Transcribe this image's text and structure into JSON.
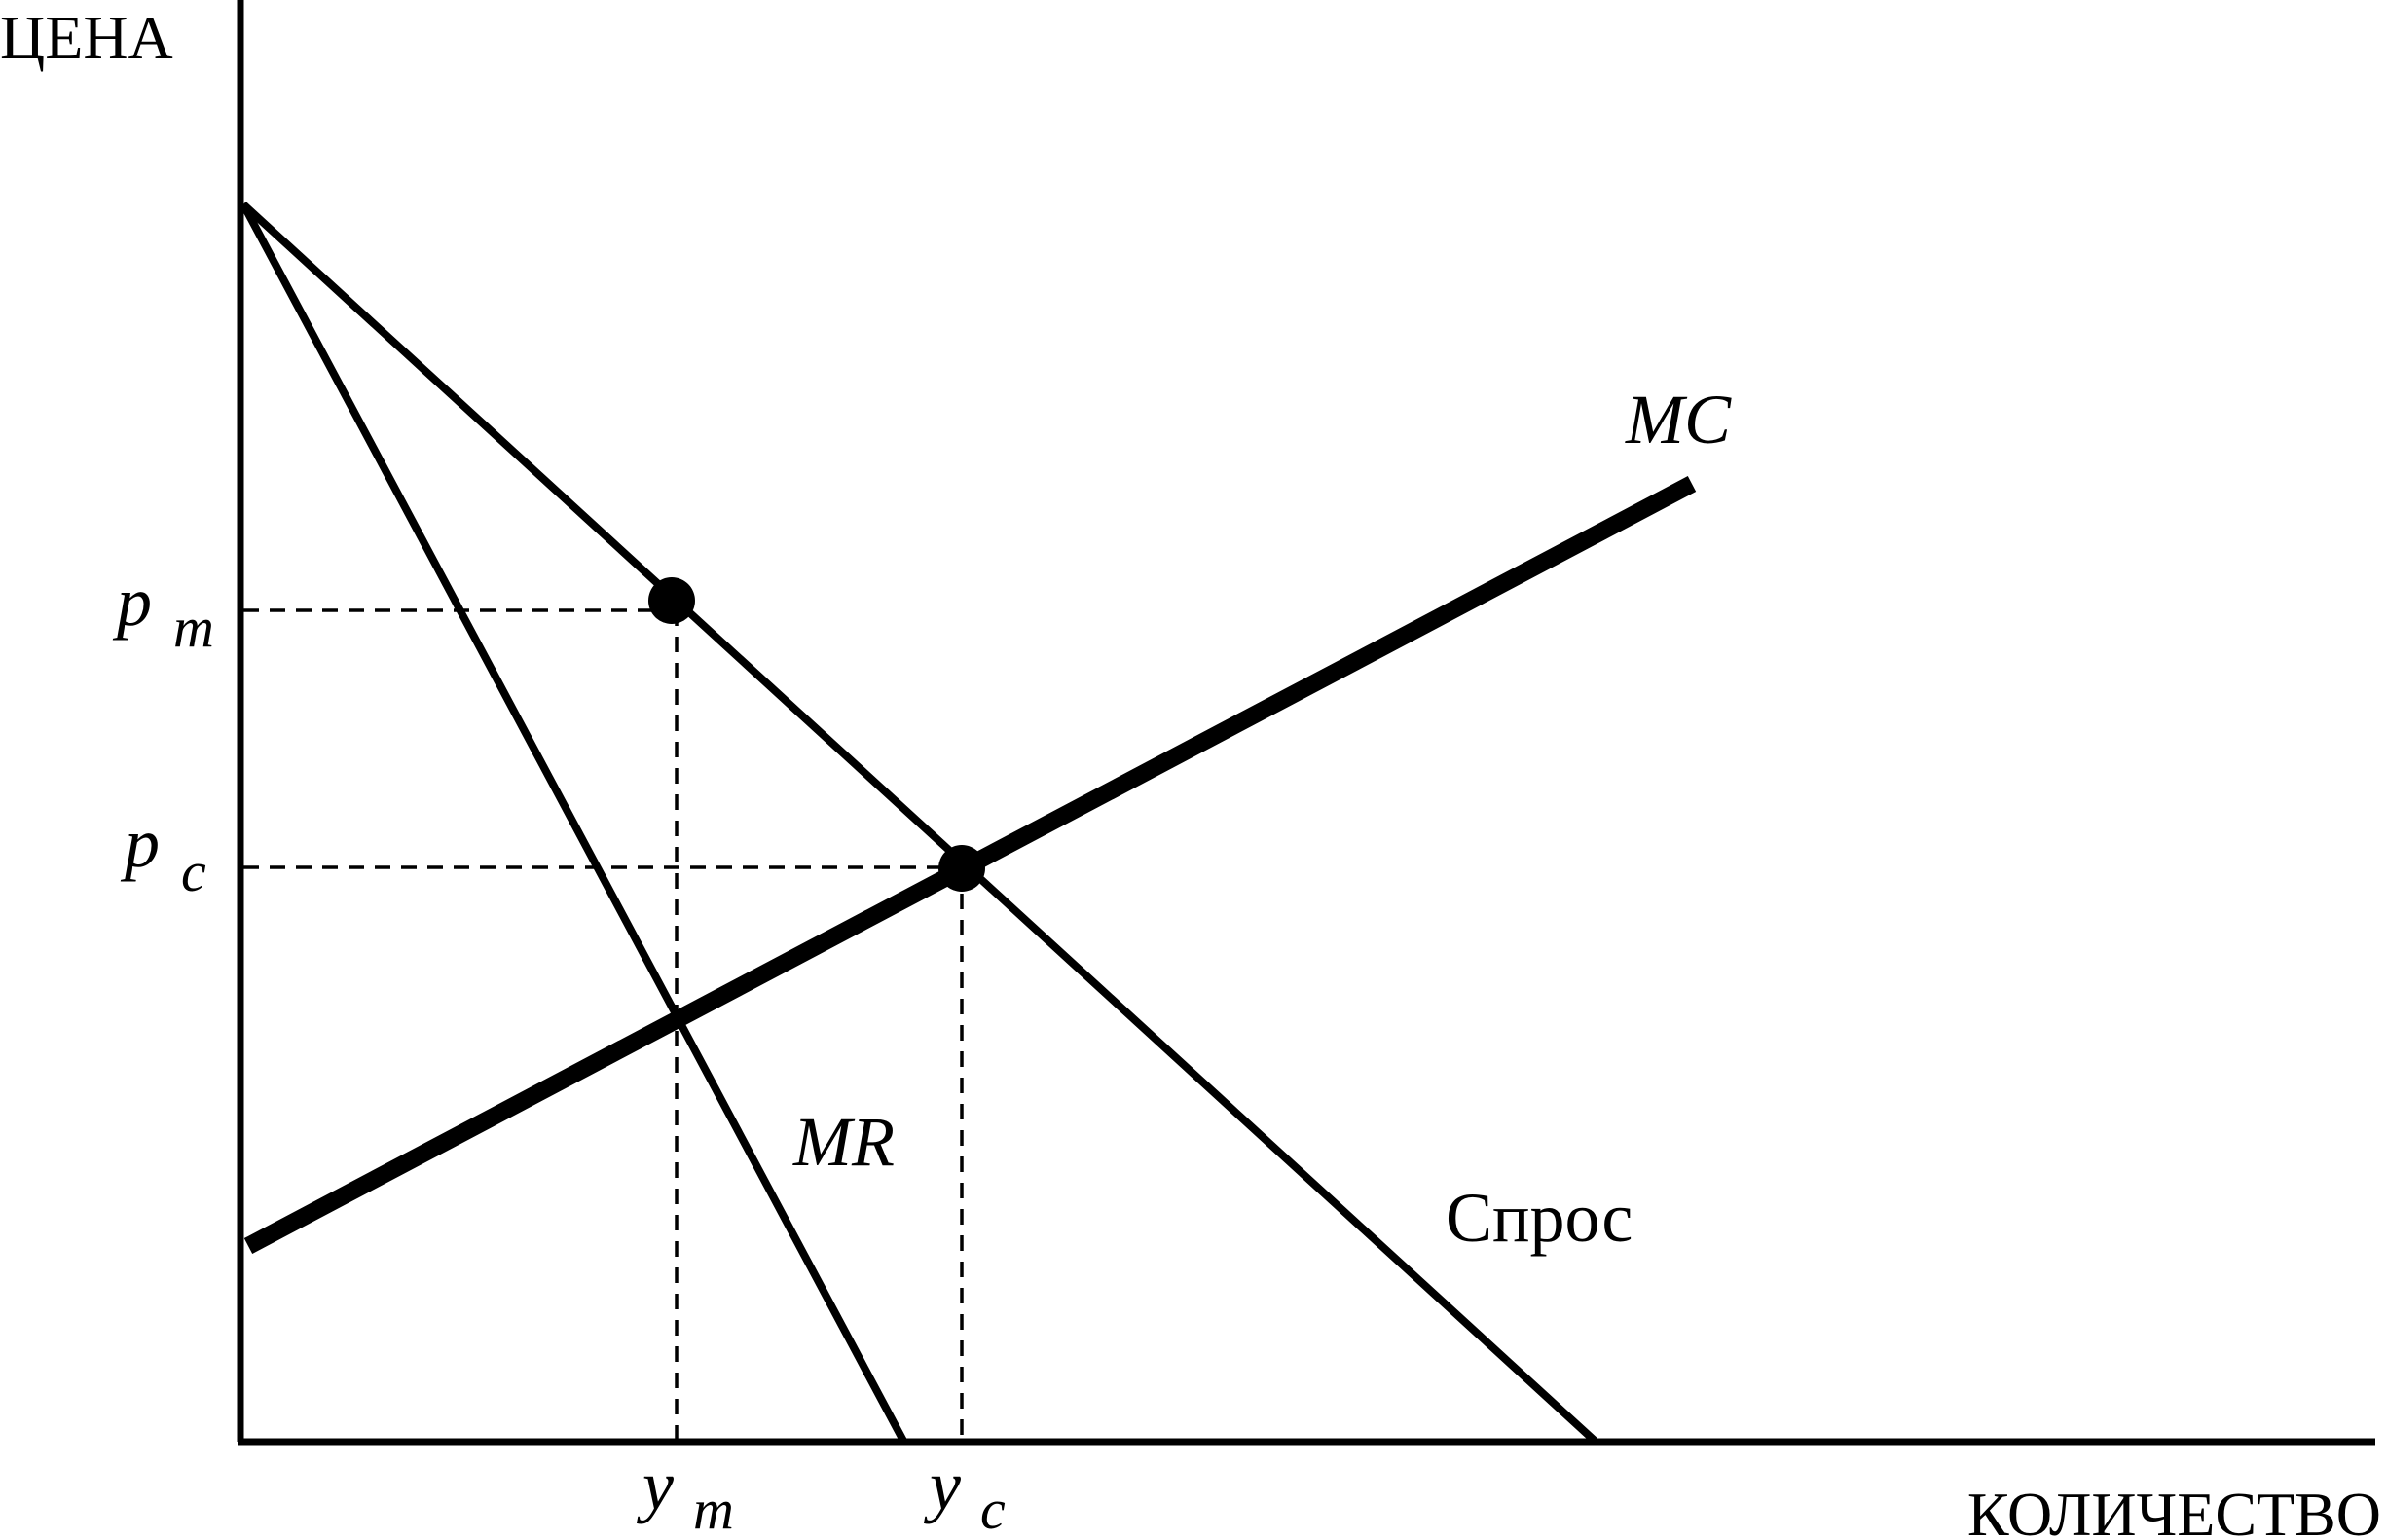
{
  "diagram": {
    "axes": {
      "y_label": "ЦЕНА",
      "x_label": "КОЛИЧЕСТВО"
    },
    "curves": {
      "mc_label": "MC",
      "mr_label": "MR",
      "demand_label": "Спрос"
    },
    "prices": {
      "pm_main": "p",
      "pm_sub": "m",
      "pc_main": "p",
      "pc_sub": "c"
    },
    "quantities": {
      "ym_main": "y",
      "ym_sub": "m",
      "yc_main": "y",
      "yc_sub": "c"
    },
    "colors": {
      "ink": "#000000",
      "background": "#ffffff"
    }
  }
}
